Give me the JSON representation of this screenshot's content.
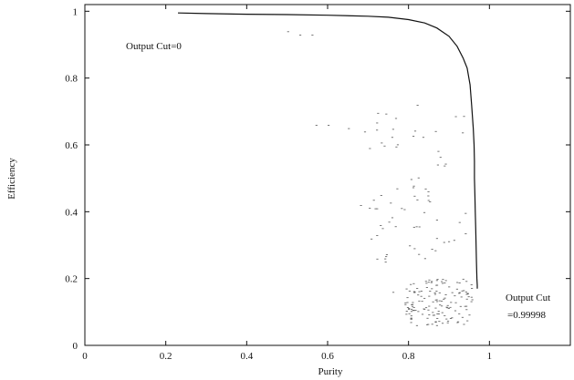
{
  "chart_data": {
    "type": "line",
    "xlabel": "Purity",
    "ylabel": "Efficiency",
    "xlim": [
      0,
      1.2
    ],
    "ylim": [
      0,
      1.02
    ],
    "grid": false,
    "x_ticks": [
      {
        "value": 0,
        "label": "0"
      },
      {
        "value": 0.2,
        "label": "0.2"
      },
      {
        "value": 0.4,
        "label": "0.4"
      },
      {
        "value": 0.6,
        "label": "0.6"
      },
      {
        "value": 0.8,
        "label": "0.8"
      },
      {
        "value": 1,
        "label": "1"
      }
    ],
    "y_ticks": [
      {
        "value": 0,
        "label": "0"
      },
      {
        "value": 0.2,
        "label": "0.2"
      },
      {
        "value": 0.4,
        "label": "0.4"
      },
      {
        "value": 0.6,
        "label": "0.6"
      },
      {
        "value": 0.8,
        "label": "0.8"
      },
      {
        "value": 1,
        "label": "1"
      }
    ],
    "series": [
      {
        "x": [
          0.23,
          0.3,
          0.4,
          0.5,
          0.6,
          0.7,
          0.75,
          0.8,
          0.84,
          0.87,
          0.9,
          0.92,
          0.935,
          0.945,
          0.952,
          0.956,
          0.96,
          0.962,
          0.963,
          0.963,
          0.964,
          0.965,
          0.966,
          0.967,
          0.968,
          0.969,
          0.97,
          0.97
        ],
        "y": [
          0.995,
          0.993,
          0.991,
          0.99,
          0.988,
          0.985,
          0.982,
          0.975,
          0.965,
          0.95,
          0.925,
          0.895,
          0.86,
          0.83,
          0.78,
          0.72,
          0.65,
          0.6,
          0.55,
          0.5,
          0.45,
          0.4,
          0.35,
          0.3,
          0.25,
          0.2,
          0.18,
          0.17
        ]
      }
    ],
    "annotations": [
      {
        "text": "Output Cut=0",
        "x": 0.1,
        "y": 0.9
      },
      {
        "text": "Output Cut",
        "x": 1.02,
        "y": 0.14
      },
      {
        "text": "=0.99998",
        "x": 1.02,
        "y": 0.09
      }
    ]
  }
}
